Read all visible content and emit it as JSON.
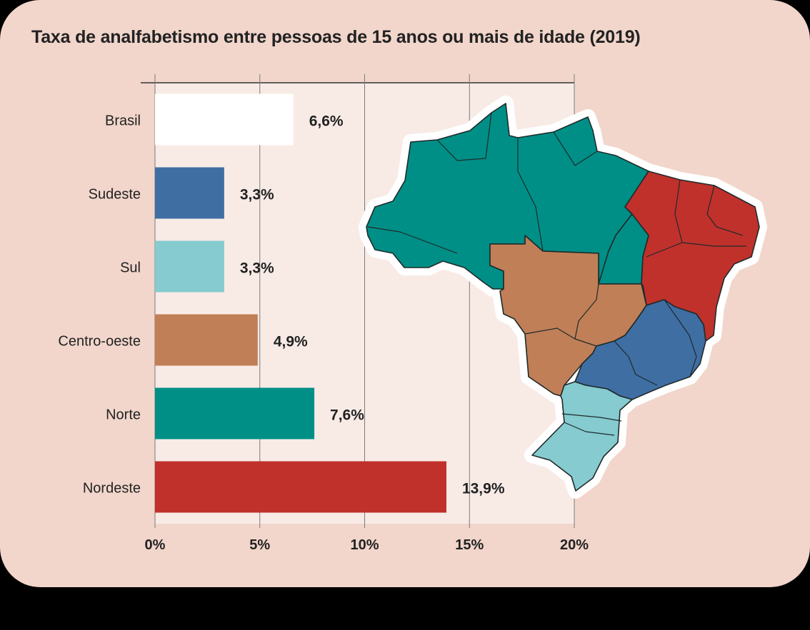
{
  "chart_data": {
    "type": "bar",
    "orientation": "horizontal",
    "title": "Taxa de analfabetismo entre pessoas de 15 anos ou mais de idade (2019)",
    "categories": [
      "Brasil",
      "Sudeste",
      "Sul",
      "Centro-oeste",
      "Norte",
      "Nordeste"
    ],
    "values": [
      6.6,
      3.3,
      3.3,
      4.9,
      7.6,
      13.9
    ],
    "value_labels": [
      "6,6%",
      "3,3%",
      "3,3%",
      "4,9%",
      "7,6%",
      "13,9%"
    ],
    "colors": [
      "#ffffff",
      "#3f6ea3",
      "#85cbcf",
      "#c07f57",
      "#008f87",
      "#c0312c"
    ],
    "xlim": [
      0,
      20
    ],
    "ticks": [
      0,
      5,
      10,
      15,
      20
    ],
    "tick_labels": [
      "0%",
      "5%",
      "10%",
      "15%",
      "20%"
    ],
    "grid": true,
    "xlabel": "",
    "ylabel": ""
  },
  "map": {
    "description_regions": [
      "Norte",
      "Nordeste",
      "Centro-oeste",
      "Sudeste",
      "Sul"
    ]
  }
}
